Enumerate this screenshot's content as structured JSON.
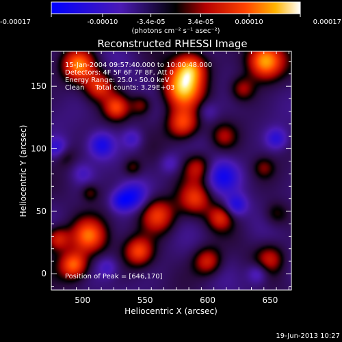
{
  "colorbar": {
    "ticks": [
      "-0.00017",
      "-0.00010",
      "-3.4e-05",
      "3.4e-05",
      "0.00010",
      "0.00017"
    ],
    "tick_values": [
      -0.00017,
      -0.0001,
      -3.4e-05,
      3.4e-05,
      0.0001,
      0.00017
    ],
    "range": [
      -0.00017,
      0.00017
    ],
    "units_label": "(photons cm⁻² s⁻¹ asec⁻²)"
  },
  "title": "Reconstructed RHESSI Image",
  "annotations": [
    "15-Jan-2004 09:57:40.000 to 10:00:48.000",
    "Detectors: 4F 5F 6F 7F 8F, Att 0",
    "Energy Range: 25.0 - 50.0 keV",
    "Clean     Total counts: 3.29E+03"
  ],
  "peak_text": "Position of Peak = [646,170]",
  "footer_date": "19-Jun-2013 10:27",
  "chart_data": {
    "type": "heatmap",
    "title": "Reconstructed RHESSI Image",
    "xlabel": "Heliocentric X (arcsec)",
    "ylabel": "Heliocentric Y (arcsec)",
    "xlim": [
      475,
      667
    ],
    "ylim": [
      -13,
      178
    ],
    "xticks": [
      500,
      550,
      600,
      650
    ],
    "yticks": [
      0,
      50,
      100,
      150
    ],
    "grid": false,
    "peak": {
      "x": 646,
      "y": 170
    },
    "blobs": [
      {
        "x": 646,
        "y": 170,
        "amp": 1.0,
        "s": 10
      },
      {
        "x": 580,
        "y": 148,
        "amp": 0.95,
        "s": 11
      },
      {
        "x": 586,
        "y": 165,
        "amp": 0.8,
        "s": 9
      },
      {
        "x": 580,
        "y": 120,
        "amp": 0.75,
        "s": 9
      },
      {
        "x": 497,
        "y": 167,
        "amp": 0.8,
        "s": 9
      },
      {
        "x": 513,
        "y": 150,
        "amp": 0.6,
        "s": 8
      },
      {
        "x": 527,
        "y": 133,
        "amp": 0.6,
        "s": 7
      },
      {
        "x": 592,
        "y": 85,
        "amp": 0.5,
        "s": 8
      },
      {
        "x": 590,
        "y": 60,
        "amp": 0.55,
        "s": 9
      },
      {
        "x": 560,
        "y": 47,
        "amp": 0.7,
        "s": 10
      },
      {
        "x": 610,
        "y": 45,
        "amp": 0.5,
        "s": 7
      },
      {
        "x": 505,
        "y": 30,
        "amp": 0.8,
        "s": 10
      },
      {
        "x": 493,
        "y": 7,
        "amp": 0.85,
        "s": 8
      },
      {
        "x": 480,
        "y": 28,
        "amp": 0.6,
        "s": 7
      },
      {
        "x": 545,
        "y": 18,
        "amp": 0.65,
        "s": 8
      },
      {
        "x": 600,
        "y": 10,
        "amp": 0.6,
        "s": 8
      },
      {
        "x": 650,
        "y": 12,
        "amp": 0.45,
        "s": 8
      },
      {
        "x": 628,
        "y": 148,
        "amp": 0.45,
        "s": 7
      },
      {
        "x": 613,
        "y": 110,
        "amp": 0.35,
        "s": 7
      },
      {
        "x": 645,
        "y": 85,
        "amp": 0.3,
        "s": 6
      },
      {
        "x": 655,
        "y": 48,
        "amp": 0.3,
        "s": 7
      },
      {
        "x": 547,
        "y": 135,
        "amp": 0.4,
        "s": 6
      },
      {
        "x": 485,
        "y": 95,
        "amp": 0.3,
        "s": 6
      },
      {
        "x": 540,
        "y": 85,
        "amp": 0.3,
        "s": 5
      },
      {
        "x": 506,
        "y": 65,
        "amp": 0.3,
        "s": 5
      },
      {
        "x": 515,
        "y": 103,
        "amp": -0.55,
        "s": 7
      },
      {
        "x": 480,
        "y": 100,
        "amp": -0.5,
        "s": 6
      },
      {
        "x": 540,
        "y": 108,
        "amp": -0.35,
        "s": 6
      },
      {
        "x": 612,
        "y": 78,
        "amp": -0.55,
        "s": 9
      },
      {
        "x": 540,
        "y": 62,
        "amp": -0.6,
        "s": 8
      },
      {
        "x": 530,
        "y": 58,
        "amp": -0.45,
        "s": 6
      },
      {
        "x": 623,
        "y": 55,
        "amp": -0.5,
        "s": 6
      },
      {
        "x": 655,
        "y": 108,
        "amp": -0.45,
        "s": 6
      },
      {
        "x": 570,
        "y": 88,
        "amp": -0.3,
        "s": 6
      },
      {
        "x": 600,
        "y": 130,
        "amp": -0.25,
        "s": 6
      },
      {
        "x": 520,
        "y": 5,
        "amp": -0.3,
        "s": 6
      },
      {
        "x": 640,
        "y": 0,
        "amp": -0.4,
        "s": 6
      },
      {
        "x": 500,
        "y": 80,
        "amp": -0.25,
        "s": 6
      }
    ]
  }
}
